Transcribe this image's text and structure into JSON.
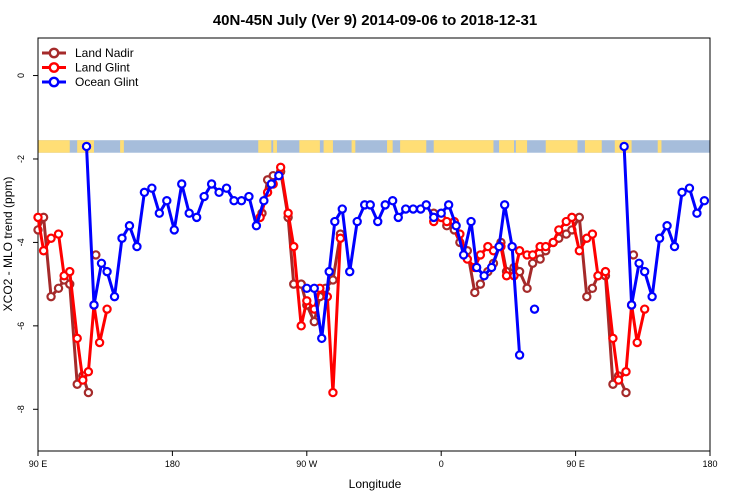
{
  "chart_data": {
    "type": "line",
    "title": "40N-45N July (Ver 9)   2014-09-06 to 2018-12-31",
    "xlabel": "Longitude",
    "ylabel": "XCO2 - MLO trend (ppm)",
    "xlim": [
      0,
      360
    ],
    "ylim": [
      -9.0,
      0.9
    ],
    "x_ticks": [
      {
        "x": 0,
        "label": "90 E"
      },
      {
        "x": 72,
        "label": "180"
      },
      {
        "x": 144,
        "label": "90 W"
      },
      {
        "x": 216,
        "label": "0"
      },
      {
        "x": 288,
        "label": "90 E"
      },
      {
        "x": 360,
        "label": "180"
      }
    ],
    "y_ticks": [
      0,
      -2,
      -4,
      -6,
      -8
    ],
    "legend_position": "top-left",
    "land_mask_colors": {
      "land": "#FFDE75",
      "ocean": "#A6BDDB"
    },
    "series": [
      {
        "name": "Land Nadir",
        "color": "#A52A2A",
        "segments": [
          [
            [
              0,
              -3.7
            ],
            [
              3,
              -3.4
            ],
            [
              7,
              -5.3
            ],
            [
              11,
              -5.1
            ],
            [
              14,
              -4.9
            ],
            [
              17,
              -5.0
            ],
            [
              21,
              -7.4
            ],
            [
              24,
              -7.2
            ],
            [
              27,
              -7.6
            ]
          ],
          [
            [
              31,
              -4.3
            ]
          ],
          [
            [
              120,
              -3.3
            ],
            [
              123,
              -2.5
            ],
            [
              126,
              -2.4
            ],
            [
              130,
              -2.3
            ],
            [
              134,
              -3.4
            ],
            [
              137,
              -5.0
            ],
            [
              141,
              -5.0
            ],
            [
              144,
              -5.5
            ],
            [
              148,
              -5.9
            ],
            [
              151,
              -5.3
            ],
            [
              154,
              -5.1
            ],
            [
              158,
              -4.9
            ],
            [
              162,
              -3.8
            ]
          ],
          [
            [
              212,
              -3.3
            ],
            [
              216,
              -3.4
            ],
            [
              219,
              -3.6
            ],
            [
              223,
              -3.7
            ],
            [
              226,
              -4.0
            ],
            [
              230,
              -4.2
            ],
            [
              234,
              -5.2
            ],
            [
              237,
              -5.0
            ],
            [
              241,
              -4.7
            ],
            [
              244,
              -4.5
            ],
            [
              248,
              -4.0
            ],
            [
              251,
              -4.7
            ],
            [
              255,
              -4.6
            ],
            [
              258,
              -4.7
            ],
            [
              262,
              -5.1
            ],
            [
              265,
              -4.5
            ],
            [
              269,
              -4.4
            ],
            [
              272,
              -4.2
            ],
            [
              276,
              -4.0
            ],
            [
              279,
              -3.9
            ],
            [
              283,
              -3.8
            ],
            [
              286,
              -3.7
            ],
            [
              290,
              -3.4
            ],
            [
              294,
              -5.3
            ],
            [
              297,
              -5.1
            ],
            [
              300,
              -4.8
            ],
            [
              304,
              -4.8
            ],
            [
              308,
              -7.4
            ],
            [
              311,
              -7.2
            ],
            [
              315,
              -7.6
            ]
          ],
          [
            [
              319,
              -4.3
            ]
          ]
        ]
      },
      {
        "name": "Land Glint",
        "color": "#FF0000",
        "segments": [
          [
            [
              0,
              -3.4
            ],
            [
              3,
              -4.2
            ],
            [
              7,
              -3.9
            ],
            [
              11,
              -3.8
            ],
            [
              14,
              -4.8
            ],
            [
              17,
              -4.7
            ],
            [
              21,
              -6.3
            ],
            [
              24,
              -7.3
            ],
            [
              27,
              -7.1
            ],
            [
              30,
              -5.5
            ],
            [
              33,
              -6.4
            ],
            [
              37,
              -5.6
            ]
          ],
          [
            [
              119,
              -3.4
            ],
            [
              123,
              -2.8
            ],
            [
              126,
              -2.6
            ],
            [
              130,
              -2.2
            ],
            [
              134,
              -3.3
            ],
            [
              137,
              -4.1
            ],
            [
              141,
              -6.0
            ],
            [
              144,
              -5.4
            ],
            [
              148,
              -5.6
            ],
            [
              151,
              -5.1
            ],
            [
              155,
              -5.3
            ],
            [
              158,
              -7.6
            ],
            [
              162,
              -3.9
            ]
          ],
          [
            [
              212,
              -3.5
            ],
            [
              216,
              -3.4
            ],
            [
              219,
              -3.5
            ],
            [
              223,
              -3.5
            ],
            [
              226,
              -3.8
            ],
            [
              230,
              -4.4
            ],
            [
              234,
              -4.6
            ],
            [
              237,
              -4.3
            ],
            [
              241,
              -4.1
            ],
            [
              244,
              -4.2
            ],
            [
              248,
              -4.1
            ],
            [
              251,
              -4.8
            ],
            [
              255,
              -4.8
            ],
            [
              258,
              -4.2
            ],
            [
              262,
              -4.3
            ],
            [
              265,
              -4.3
            ],
            [
              269,
              -4.1
            ],
            [
              272,
              -4.1
            ],
            [
              276,
              -4.0
            ],
            [
              279,
              -3.7
            ],
            [
              283,
              -3.5
            ],
            [
              286,
              -3.4
            ],
            [
              290,
              -4.2
            ],
            [
              294,
              -3.9
            ],
            [
              297,
              -3.8
            ],
            [
              300,
              -4.8
            ],
            [
              304,
              -4.7
            ],
            [
              308,
              -6.3
            ],
            [
              311,
              -7.3
            ],
            [
              315,
              -7.1
            ],
            [
              318,
              -5.5
            ],
            [
              321,
              -6.4
            ],
            [
              325,
              -5.6
            ]
          ]
        ]
      },
      {
        "name": "Ocean Glint",
        "color": "#0000FF",
        "segments": [
          [
            [
              26,
              -1.7
            ],
            [
              30,
              -5.5
            ],
            [
              34,
              -4.5
            ],
            [
              37,
              -4.7
            ],
            [
              41,
              -5.3
            ],
            [
              45,
              -3.9
            ],
            [
              49,
              -3.6
            ],
            [
              53,
              -4.1
            ],
            [
              57,
              -2.8
            ],
            [
              61,
              -2.7
            ],
            [
              65,
              -3.3
            ],
            [
              69,
              -3.0
            ],
            [
              73,
              -3.7
            ],
            [
              77,
              -2.6
            ],
            [
              81,
              -3.3
            ],
            [
              85,
              -3.4
            ],
            [
              89,
              -2.9
            ],
            [
              93,
              -2.6
            ],
            [
              97,
              -2.8
            ],
            [
              101,
              -2.7
            ],
            [
              105,
              -3.0
            ],
            [
              109,
              -3.0
            ],
            [
              113,
              -2.9
            ],
            [
              117,
              -3.6
            ],
            [
              121,
              -3.0
            ],
            [
              125,
              -2.6
            ],
            [
              129,
              -2.4
            ]
          ],
          [
            [
              144,
              -5.1
            ],
            [
              148,
              -5.1
            ],
            [
              152,
              -6.3
            ],
            [
              156,
              -4.7
            ],
            [
              159,
              -3.5
            ],
            [
              163,
              -3.2
            ],
            [
              167,
              -4.7
            ],
            [
              171,
              -3.5
            ],
            [
              175,
              -3.1
            ],
            [
              178,
              -3.1
            ],
            [
              182,
              -3.5
            ],
            [
              186,
              -3.1
            ],
            [
              190,
              -3.0
            ],
            [
              193,
              -3.4
            ],
            [
              197,
              -3.2
            ],
            [
              201,
              -3.2
            ],
            [
              205,
              -3.2
            ],
            [
              208,
              -3.1
            ],
            [
              212,
              -3.4
            ],
            [
              216,
              -3.3
            ],
            [
              220,
              -3.1
            ],
            [
              224,
              -3.6
            ],
            [
              228,
              -4.3
            ],
            [
              232,
              -3.5
            ],
            [
              235,
              -4.6
            ],
            [
              239,
              -4.8
            ],
            [
              243,
              -4.6
            ],
            [
              247,
              -4.1
            ],
            [
              250,
              -3.1
            ],
            [
              254,
              -4.1
            ],
            [
              258,
              -6.7
            ]
          ],
          [
            [
              266,
              -5.6
            ]
          ],
          [
            [
              314,
              -1.7
            ],
            [
              318,
              -5.5
            ],
            [
              322,
              -4.5
            ],
            [
              325,
              -4.7
            ],
            [
              329,
              -5.3
            ],
            [
              333,
              -3.9
            ],
            [
              337,
              -3.6
            ],
            [
              341,
              -4.1
            ],
            [
              345,
              -2.8
            ],
            [
              349,
              -2.7
            ],
            [
              353,
              -3.3
            ],
            [
              357,
              -3.0
            ],
            [
              361,
              -3.7
            ]
          ]
        ]
      }
    ]
  }
}
